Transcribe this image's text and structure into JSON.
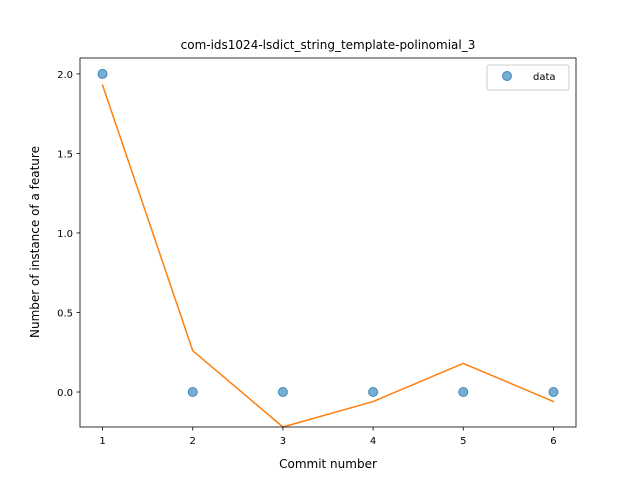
{
  "chart_data": {
    "type": "scatter",
    "title": "com-ids1024-lsdict_string_template-polinomial_3",
    "xlabel": "Commit number",
    "ylabel": "Number of instance of a feature",
    "xlim": [
      0.75,
      6.25
    ],
    "ylim": [
      -0.22,
      2.1
    ],
    "xticks": [
      1,
      2,
      3,
      4,
      5,
      6
    ],
    "yticks": [
      0.0,
      0.5,
      1.0,
      1.5,
      2.0
    ],
    "xtick_labels": [
      "1",
      "2",
      "3",
      "4",
      "5",
      "6"
    ],
    "ytick_labels": [
      "0.0",
      "0.5",
      "1.0",
      "1.5",
      "2.0"
    ],
    "grid": false,
    "legend_position": "top-right",
    "series": [
      {
        "name": "data",
        "kind": "scatter",
        "color": "#1f77b4",
        "x": [
          1,
          2,
          3,
          4,
          5,
          6
        ],
        "y": [
          2.0,
          0.0,
          0.0,
          0.0,
          0.0,
          0.0
        ]
      },
      {
        "kind": "line",
        "color": "#ff7f0e",
        "x": [
          1,
          2,
          3,
          4,
          5,
          6
        ],
        "y": [
          1.93,
          0.26,
          -0.22,
          -0.06,
          0.18,
          -0.06
        ]
      }
    ]
  }
}
